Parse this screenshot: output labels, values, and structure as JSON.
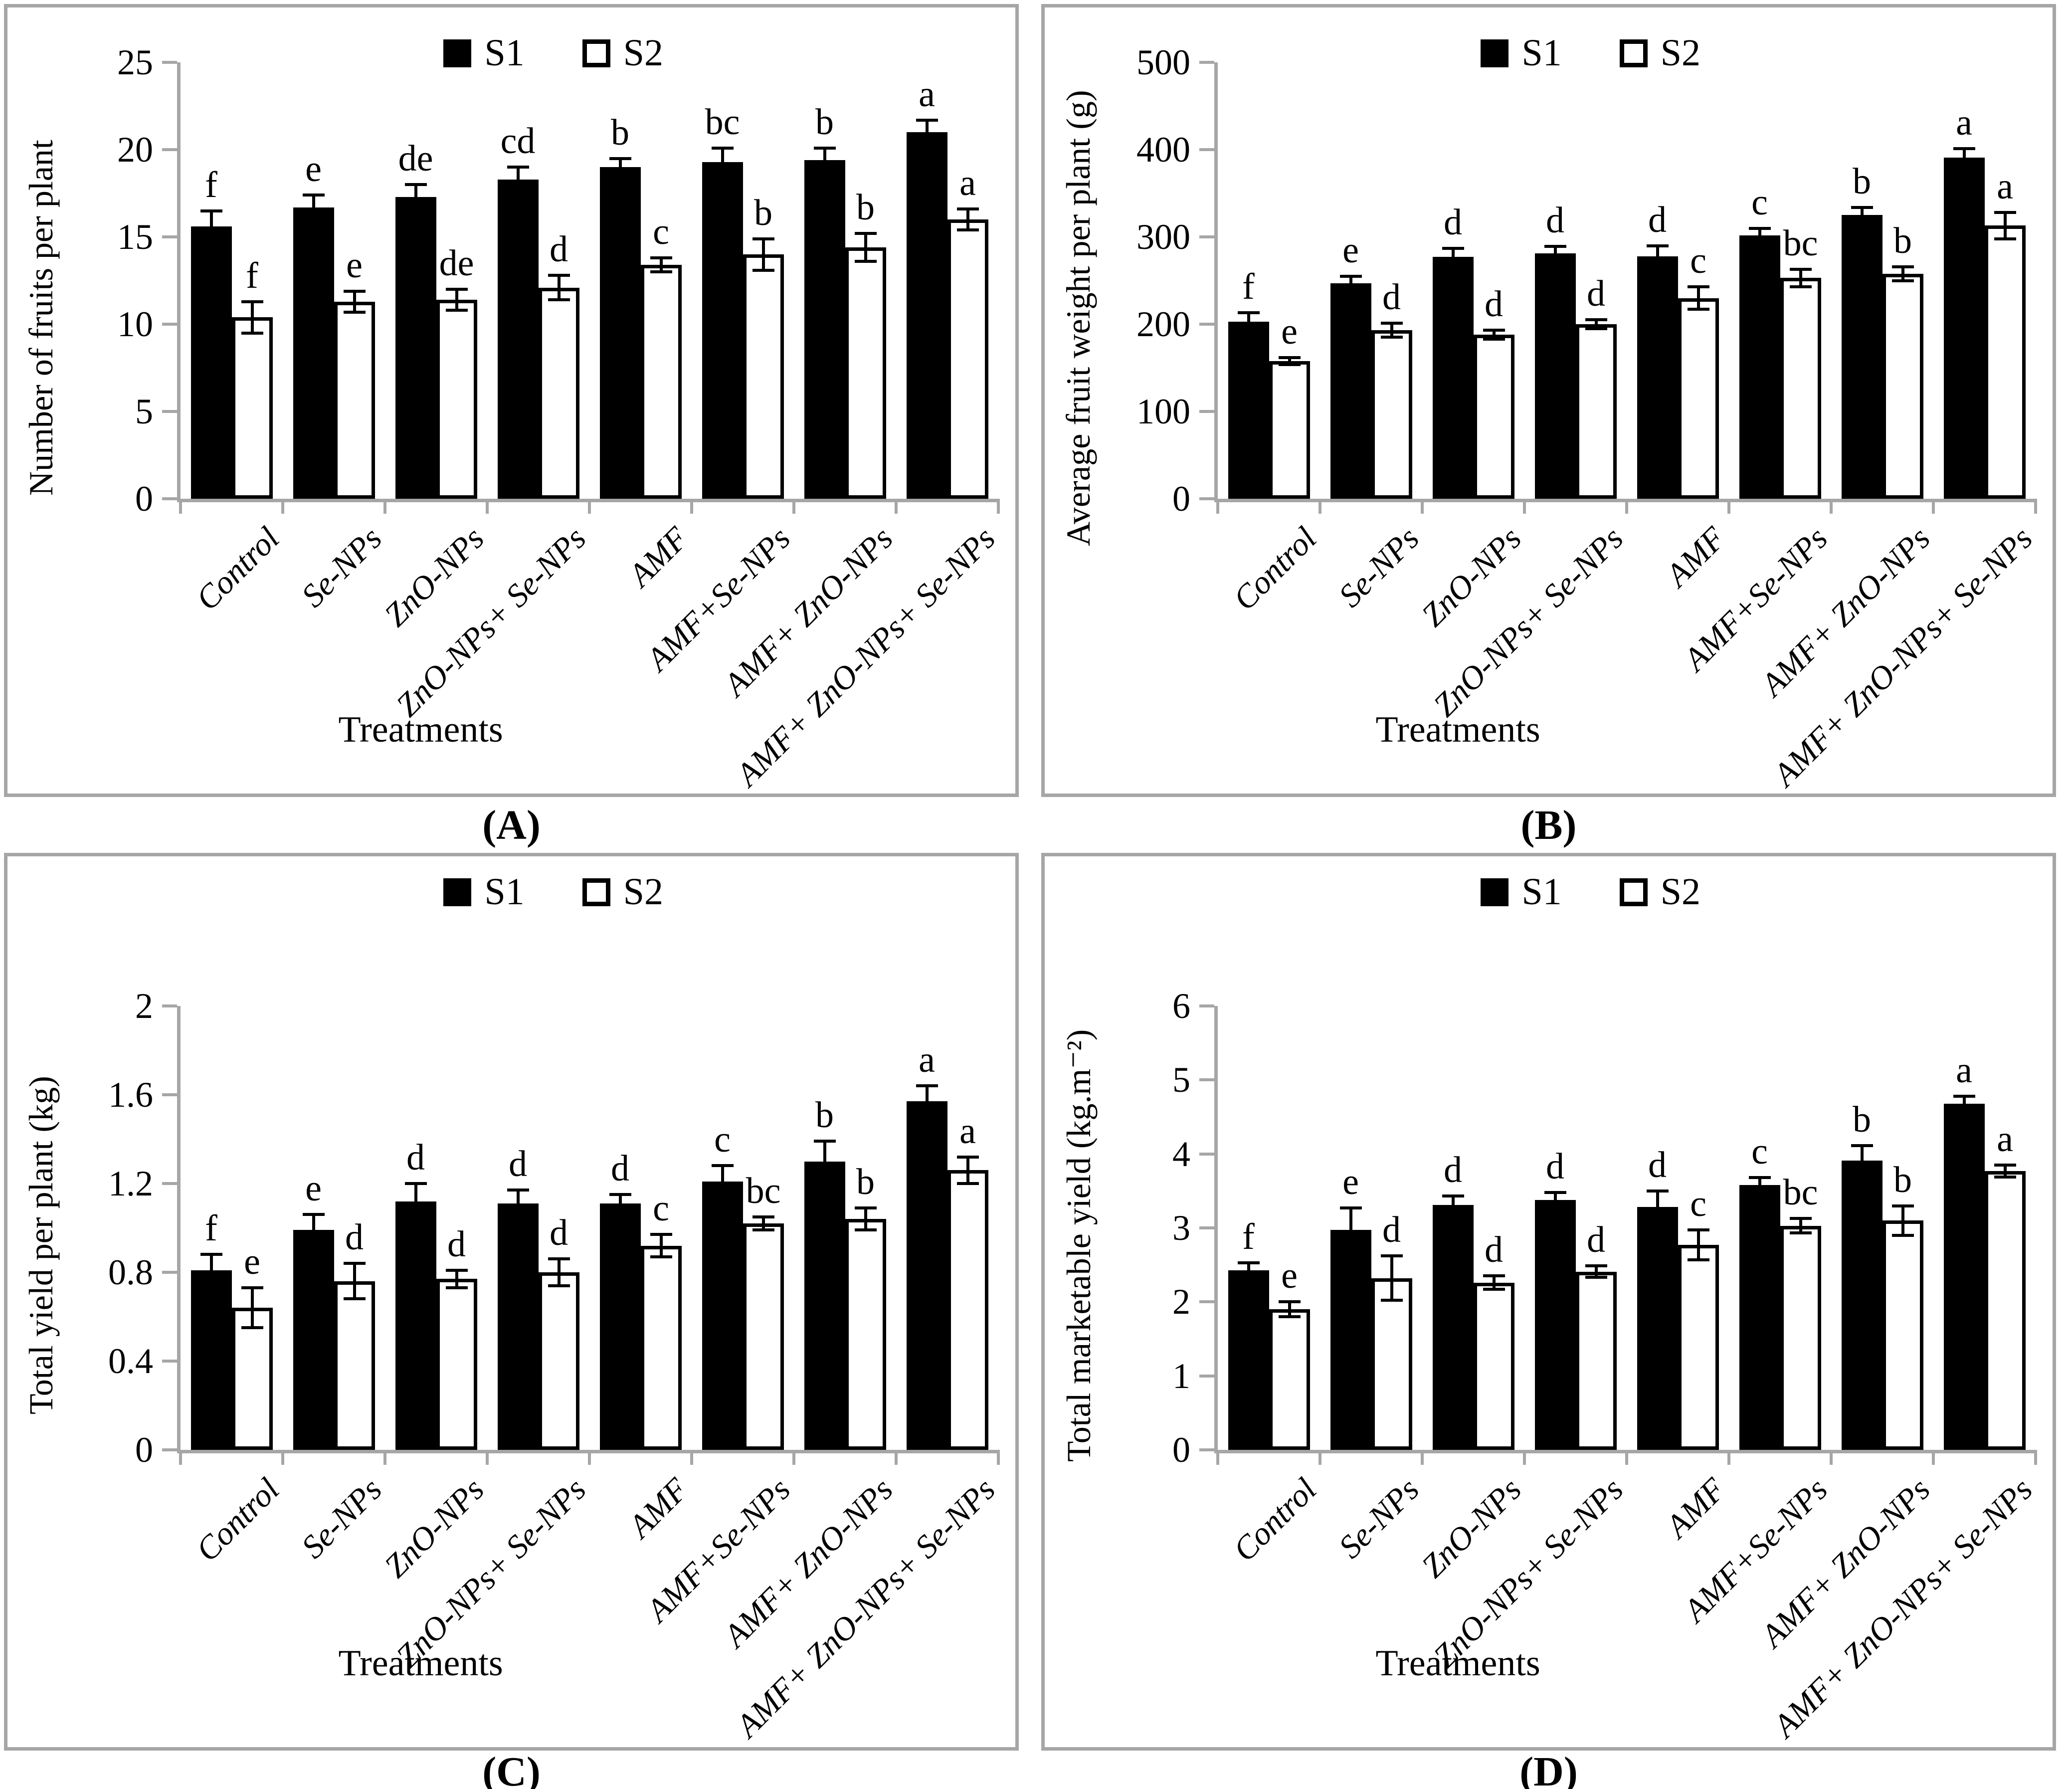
{
  "figure": {
    "legend": {
      "s1": "S1",
      "s2": "S2"
    }
  },
  "chart_data": [
    {
      "type": "bar",
      "caption": "(A)",
      "title": "",
      "ylabel": "Number of fruits per plant",
      "xlabel": "Treatments",
      "ylim": [
        0,
        25
      ],
      "yticks": [
        0,
        5,
        10,
        15,
        20,
        25
      ],
      "grid": false,
      "legend_position": "top-center",
      "categories": [
        "Control",
        "Se-NPs",
        "ZnO-NPs",
        "ZnO-NPs+ Se-NPs",
        "AMF",
        "AMF+Se-NPs",
        "AMF+ ZnO-NPs",
        "AMF+ ZnO-NPs+ Se-NPs"
      ],
      "series": [
        {
          "name": "S1",
          "values": [
            15.6,
            16.7,
            17.3,
            18.3,
            19.0,
            19.3,
            19.4,
            21.0
          ],
          "errors": [
            0.9,
            0.7,
            0.7,
            0.7,
            0.5,
            0.8,
            0.7,
            0.7
          ],
          "letters": [
            "f",
            "e",
            "de",
            "cd",
            "b",
            "bc",
            "b",
            "a"
          ]
        },
        {
          "name": "S2",
          "values": [
            10.4,
            11.3,
            11.4,
            12.1,
            13.4,
            14.0,
            14.4,
            16.0
          ],
          "errors": [
            0.9,
            0.6,
            0.6,
            0.7,
            0.4,
            0.9,
            0.8,
            0.6
          ],
          "letters": [
            "f",
            "e",
            "de",
            "d",
            "c",
            "b",
            "b",
            "a"
          ]
        }
      ],
      "colors": {
        "s1": "#000000",
        "s2": "#ffffff",
        "axis": "#a6a6a6"
      }
    },
    {
      "type": "bar",
      "caption": "(B)",
      "title": "",
      "ylabel": "Average fruit weight per plant (g)",
      "xlabel": "Treatments",
      "ylim": [
        0,
        500
      ],
      "yticks": [
        0,
        100,
        200,
        300,
        400,
        500
      ],
      "grid": false,
      "legend_position": "top-center",
      "categories": [
        "Control",
        "Se-NPs",
        "ZnO-NPs",
        "ZnO-NPs+ Se-NPs",
        "AMF",
        "AMF+Se-NPs",
        "AMF+ ZnO-NPs",
        "AMF+ ZnO-NPs+ Se-NPs"
      ],
      "series": [
        {
          "name": "S1",
          "values": [
            203,
            247,
            277,
            281,
            278,
            302,
            325,
            391
          ],
          "errors": [
            10,
            8,
            10,
            8,
            12,
            8,
            9,
            10
          ],
          "letters": [
            "f",
            "e",
            "d",
            "d",
            "d",
            "c",
            "b",
            "a"
          ]
        },
        {
          "name": "S2",
          "values": [
            158,
            193,
            188,
            200,
            230,
            253,
            258,
            313
          ],
          "errors": [
            4,
            8,
            5,
            5,
            13,
            10,
            8,
            15
          ],
          "letters": [
            "e",
            "d",
            "d",
            "d",
            "c",
            "bc",
            "b",
            "a"
          ]
        }
      ],
      "colors": {
        "s1": "#000000",
        "s2": "#ffffff",
        "axis": "#a6a6a6"
      }
    },
    {
      "type": "bar",
      "caption": "(C)",
      "title": "",
      "ylabel": "Total yield per plant (kg)",
      "xlabel": "Treatments",
      "ylim": [
        0,
        2
      ],
      "yticks": [
        0,
        0.4,
        0.8,
        1.2,
        1.6,
        2
      ],
      "grid": false,
      "legend_position": "top-center",
      "categories": [
        "Control",
        "Se-NPs",
        "ZnO-NPs",
        "ZnO-NPs+ Se-NPs",
        "AMF",
        "AMF+Se-NPs",
        "AMF+ ZnO-NPs",
        "AMF+ ZnO-NPs+ Se-NPs"
      ],
      "series": [
        {
          "name": "S1",
          "values": [
            0.81,
            0.99,
            1.12,
            1.11,
            1.11,
            1.21,
            1.3,
            1.57
          ],
          "errors": [
            0.07,
            0.07,
            0.08,
            0.06,
            0.04,
            0.07,
            0.09,
            0.07
          ],
          "letters": [
            "f",
            "e",
            "d",
            "d",
            "d",
            "c",
            "b",
            "a"
          ]
        },
        {
          "name": "S2",
          "values": [
            0.64,
            0.76,
            0.77,
            0.8,
            0.92,
            1.02,
            1.04,
            1.26
          ],
          "errors": [
            0.09,
            0.08,
            0.04,
            0.06,
            0.05,
            0.03,
            0.05,
            0.06
          ],
          "letters": [
            "e",
            "d",
            "d",
            "d",
            "c",
            "bc",
            "b",
            "a"
          ]
        }
      ],
      "colors": {
        "s1": "#000000",
        "s2": "#ffffff",
        "axis": "#a6a6a6"
      }
    },
    {
      "type": "bar",
      "caption": "(D)",
      "title": "",
      "ylabel": "Total marketable yield (kg.m⁻²)",
      "xlabel": "Treatments",
      "ylim": [
        0,
        6
      ],
      "yticks": [
        0,
        1,
        2,
        3,
        4,
        5,
        6
      ],
      "grid": false,
      "legend_position": "top-center",
      "categories": [
        "Control",
        "Se-NPs",
        "ZnO-NPs",
        "ZnO-NPs+ Se-NPs",
        "AMF",
        "AMF+Se-NPs",
        "AMF+ ZnO-NPs",
        "AMF+ ZnO-NPs+ Se-NPs"
      ],
      "series": [
        {
          "name": "S1",
          "values": [
            2.43,
            2.97,
            3.31,
            3.38,
            3.28,
            3.58,
            3.91,
            4.68
          ],
          "errors": [
            0.1,
            0.3,
            0.12,
            0.1,
            0.22,
            0.1,
            0.2,
            0.1
          ],
          "letters": [
            "f",
            "e",
            "d",
            "d",
            "d",
            "c",
            "b",
            "a"
          ]
        },
        {
          "name": "S2",
          "values": [
            1.9,
            2.32,
            2.26,
            2.41,
            2.77,
            3.03,
            3.1,
            3.77
          ],
          "errors": [
            0.1,
            0.3,
            0.09,
            0.08,
            0.2,
            0.1,
            0.2,
            0.08
          ],
          "letters": [
            "e",
            "d",
            "d",
            "d",
            "c",
            "bc",
            "b",
            "a"
          ]
        }
      ],
      "colors": {
        "s1": "#000000",
        "s2": "#ffffff",
        "axis": "#a6a6a6"
      }
    }
  ]
}
